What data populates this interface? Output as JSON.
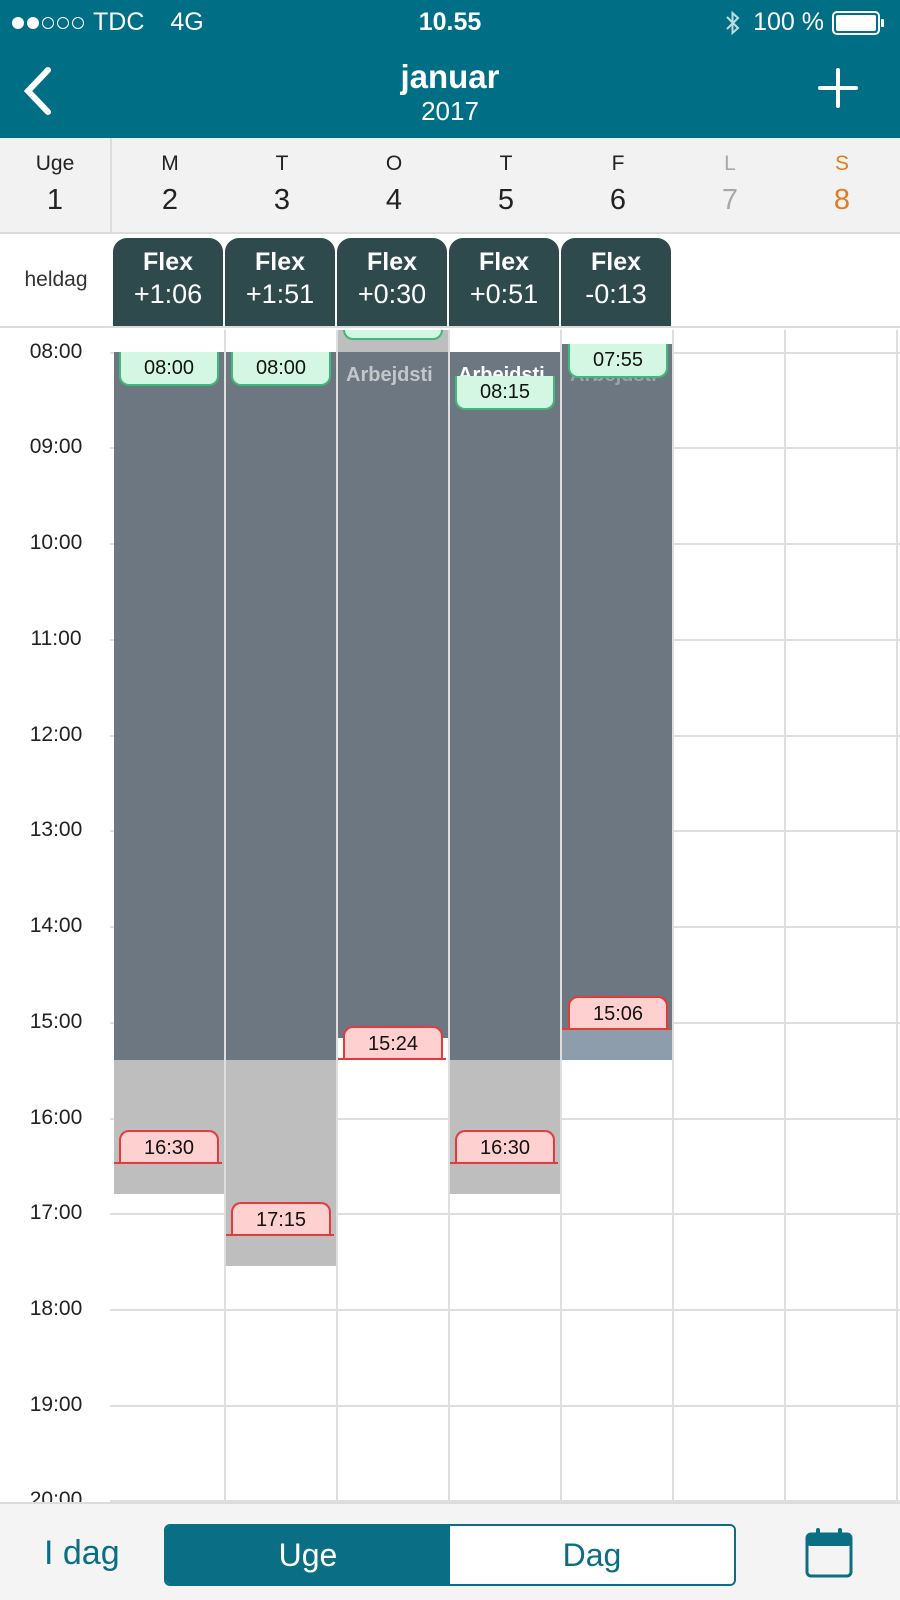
{
  "status_bar": {
    "carrier": "TDC",
    "network": "4G",
    "time": "10.55",
    "battery": "100 %"
  },
  "header": {
    "title": "januar",
    "subtitle": "2017",
    "back_icon": "chevron-left-icon",
    "add_icon": "plus-icon"
  },
  "week": {
    "label": "Uge",
    "number": "1"
  },
  "days": [
    {
      "letter": "M",
      "number": "2"
    },
    {
      "letter": "T",
      "number": "3"
    },
    {
      "letter": "O",
      "number": "4"
    },
    {
      "letter": "T",
      "number": "5"
    },
    {
      "letter": "F",
      "number": "6"
    },
    {
      "letter": "L",
      "number": "7"
    },
    {
      "letter": "S",
      "number": "8"
    }
  ],
  "allday": {
    "label": "heldag",
    "flex": [
      {
        "title": "Flex",
        "value": "+1:06"
      },
      {
        "title": "Flex",
        "value": "+1:51"
      },
      {
        "title": "Flex",
        "value": "+0:30"
      },
      {
        "title": "Flex",
        "value": "+0:51"
      },
      {
        "title": "Flex",
        "value": "-0:13"
      }
    ]
  },
  "hours": [
    "08:00",
    "09:00",
    "10:00",
    "11:00",
    "12:00",
    "13:00",
    "14:00",
    "15:00",
    "16:00",
    "17:00",
    "18:00",
    "19:00",
    "20:00"
  ],
  "events": {
    "block_label": "Arbejdsti",
    "mon_start": "08:00",
    "mon_end": "16:30",
    "tue_start": "08:00",
    "tue_end": "17:15",
    "wed_end": "15:24",
    "thu_start": "08:15",
    "thu_end": "16:30",
    "fri_start": "07:55",
    "fri_end": "15:06"
  },
  "bottom_bar": {
    "today": "I dag",
    "segments": [
      "Uge",
      "Dag"
    ],
    "calendar_icon": "calendar-icon"
  },
  "colors": {
    "header": "#006f85",
    "accent": "#0a6f85",
    "flex_chip": "#2e4a4d",
    "work_block": "#6d7781",
    "start_tag": "#d4f7e3",
    "end_tag": "#ffd0d0",
    "saturday": "#e07d1e"
  }
}
